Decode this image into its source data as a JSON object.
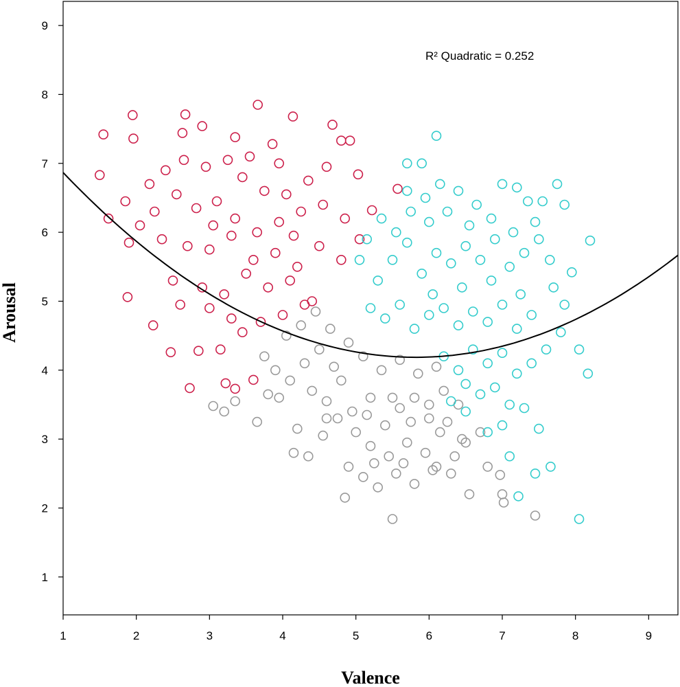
{
  "chart_data": {
    "type": "scatter",
    "xlabel": "Valence",
    "ylabel": "Arousal",
    "xlim": [
      1,
      9.4
    ],
    "ylim": [
      0.45,
      9.35
    ],
    "xticks": [
      1,
      2,
      3,
      4,
      5,
      6,
      7,
      8,
      9
    ],
    "yticks": [
      1,
      2,
      3,
      4,
      5,
      6,
      7,
      8,
      9
    ],
    "grid": false,
    "marker": "open-circle",
    "annotation": "R² Quadratic = 0.252",
    "fit": {
      "kind": "quadratic",
      "coefficients": {
        "a": 0.1154,
        "b": -1.343,
        "c": 8.094
      },
      "color": "#000000"
    },
    "series": [
      {
        "color": "#cc1f4a",
        "generated": true,
        "points": [
          [
            1.55,
            7.42
          ],
          [
            1.5,
            6.83
          ],
          [
            1.95,
            7.7
          ],
          [
            1.96,
            7.36
          ],
          [
            2.67,
            7.71
          ],
          [
            2.9,
            7.54
          ],
          [
            3.66,
            7.85
          ],
          [
            4.14,
            7.68
          ],
          [
            4.68,
            7.56
          ],
          [
            4.8,
            7.33
          ],
          [
            4.92,
            7.33
          ],
          [
            3.35,
            7.38
          ],
          [
            2.63,
            7.44
          ],
          [
            3.86,
            7.28
          ],
          [
            1.62,
            6.2
          ],
          [
            1.85,
            6.45
          ],
          [
            1.88,
            5.06
          ],
          [
            2.23,
            4.65
          ],
          [
            2.47,
            4.26
          ],
          [
            2.73,
            3.74
          ],
          [
            3.22,
            3.81
          ],
          [
            3.35,
            3.73
          ],
          [
            3.6,
            3.86
          ],
          [
            5.57,
            6.63
          ],
          [
            5.22,
            6.32
          ],
          [
            5.03,
            6.84
          ],
          [
            2.18,
            6.7
          ],
          [
            2.55,
            6.55
          ],
          [
            2.82,
            6.35
          ],
          [
            3.1,
            6.45
          ],
          [
            3.45,
            6.8
          ],
          [
            3.75,
            6.6
          ],
          [
            4.05,
            6.55
          ],
          [
            4.35,
            6.75
          ],
          [
            4.6,
            6.95
          ],
          [
            2.35,
            5.9
          ],
          [
            2.7,
            5.8
          ],
          [
            3.0,
            5.75
          ],
          [
            3.3,
            5.95
          ],
          [
            3.6,
            5.6
          ],
          [
            3.9,
            5.7
          ],
          [
            4.2,
            5.5
          ],
          [
            4.5,
            5.8
          ],
          [
            4.8,
            5.6
          ],
          [
            2.5,
            5.3
          ],
          [
            2.9,
            5.2
          ],
          [
            3.2,
            5.1
          ],
          [
            3.5,
            5.4
          ],
          [
            3.8,
            5.2
          ],
          [
            4.1,
            5.3
          ],
          [
            4.4,
            5.0
          ],
          [
            2.6,
            4.95
          ],
          [
            3.0,
            4.9
          ],
          [
            3.3,
            4.75
          ],
          [
            3.7,
            4.7
          ],
          [
            4.0,
            4.8
          ],
          [
            4.3,
            4.95
          ],
          [
            3.15,
            4.3
          ],
          [
            3.45,
            4.55
          ],
          [
            2.85,
            4.28
          ],
          [
            1.9,
            5.85
          ],
          [
            2.05,
            6.1
          ],
          [
            2.25,
            6.3
          ],
          [
            2.4,
            6.9
          ],
          [
            2.65,
            7.05
          ],
          [
            2.95,
            6.95
          ],
          [
            3.25,
            7.05
          ],
          [
            3.55,
            7.1
          ],
          [
            3.95,
            7.0
          ],
          [
            4.25,
            6.3
          ],
          [
            4.55,
            6.4
          ],
          [
            4.85,
            6.2
          ],
          [
            5.05,
            5.9
          ],
          [
            3.05,
            6.1
          ],
          [
            3.35,
            6.2
          ],
          [
            3.65,
            6.0
          ],
          [
            3.95,
            6.15
          ],
          [
            4.15,
            5.95
          ]
        ]
      },
      {
        "color": "#999999",
        "generated": true,
        "points": [
          [
            3.05,
            3.48
          ],
          [
            3.2,
            3.4
          ],
          [
            3.35,
            3.55
          ],
          [
            3.65,
            3.25
          ],
          [
            3.8,
            3.65
          ],
          [
            4.2,
            3.15
          ],
          [
            4.15,
            2.8
          ],
          [
            4.35,
            2.75
          ],
          [
            4.85,
            2.15
          ],
          [
            5.5,
            1.84
          ],
          [
            7.02,
            2.08
          ],
          [
            6.97,
            2.48
          ],
          [
            7.0,
            2.2
          ],
          [
            7.45,
            1.89
          ],
          [
            6.55,
            2.2
          ],
          [
            6.8,
            2.6
          ],
          [
            4.55,
            3.05
          ],
          [
            4.75,
            3.3
          ],
          [
            4.9,
            2.6
          ],
          [
            5.1,
            2.45
          ],
          [
            5.3,
            2.3
          ],
          [
            5.55,
            2.5
          ],
          [
            5.8,
            2.35
          ],
          [
            6.05,
            2.55
          ],
          [
            6.3,
            2.5
          ],
          [
            6.5,
            2.95
          ],
          [
            6.7,
            3.1
          ],
          [
            5.2,
            3.6
          ],
          [
            5.4,
            3.2
          ],
          [
            5.6,
            3.45
          ],
          [
            5.8,
            3.6
          ],
          [
            6.0,
            3.3
          ],
          [
            6.2,
            3.7
          ],
          [
            6.4,
            3.5
          ],
          [
            4.4,
            3.7
          ],
          [
            4.6,
            3.55
          ],
          [
            4.8,
            3.85
          ],
          [
            5.0,
            3.1
          ],
          [
            5.2,
            2.9
          ],
          [
            5.45,
            2.75
          ],
          [
            5.7,
            2.95
          ],
          [
            5.95,
            2.8
          ],
          [
            6.15,
            3.1
          ],
          [
            4.3,
            4.1
          ],
          [
            4.5,
            4.3
          ],
          [
            4.7,
            4.05
          ],
          [
            4.9,
            4.4
          ],
          [
            5.1,
            4.2
          ],
          [
            5.35,
            4.0
          ],
          [
            5.6,
            4.15
          ],
          [
            5.85,
            3.95
          ],
          [
            6.1,
            4.05
          ],
          [
            3.9,
            4.0
          ],
          [
            4.05,
            4.5
          ],
          [
            4.25,
            4.65
          ],
          [
            4.45,
            4.85
          ],
          [
            4.65,
            4.6
          ],
          [
            3.75,
            4.2
          ],
          [
            3.95,
            3.6
          ],
          [
            4.1,
            3.85
          ],
          [
            4.6,
            3.3
          ],
          [
            4.95,
            3.4
          ],
          [
            5.15,
            3.35
          ],
          [
            5.5,
            3.6
          ],
          [
            5.75,
            3.25
          ],
          [
            6.0,
            3.5
          ],
          [
            6.25,
            3.25
          ],
          [
            6.45,
            3.0
          ],
          [
            5.25,
            2.65
          ],
          [
            5.65,
            2.65
          ],
          [
            6.1,
            2.6
          ],
          [
            6.35,
            2.75
          ]
        ]
      },
      {
        "color": "#33cccc",
        "generated": true,
        "points": [
          [
            6.1,
            7.4
          ],
          [
            5.7,
            7.0
          ],
          [
            5.9,
            7.0
          ],
          [
            5.7,
            6.6
          ],
          [
            5.95,
            6.5
          ],
          [
            6.15,
            6.7
          ],
          [
            6.4,
            6.6
          ],
          [
            6.65,
            6.4
          ],
          [
            7.0,
            6.7
          ],
          [
            7.2,
            6.65
          ],
          [
            7.75,
            6.7
          ],
          [
            7.55,
            6.45
          ],
          [
            7.35,
            6.45
          ],
          [
            7.85,
            6.4
          ],
          [
            7.95,
            5.42
          ],
          [
            8.2,
            5.88
          ],
          [
            8.05,
            4.3
          ],
          [
            8.17,
            3.95
          ],
          [
            8.05,
            1.84
          ],
          [
            7.66,
            2.6
          ],
          [
            7.45,
            2.5
          ],
          [
            7.22,
            2.17
          ],
          [
            7.1,
            2.75
          ],
          [
            7.5,
            3.15
          ],
          [
            7.3,
            3.45
          ],
          [
            7.0,
            3.2
          ],
          [
            6.8,
            3.1
          ],
          [
            6.5,
            3.4
          ],
          [
            6.3,
            3.55
          ],
          [
            5.3,
            5.3
          ],
          [
            5.5,
            5.6
          ],
          [
            5.7,
            5.85
          ],
          [
            5.9,
            5.4
          ],
          [
            6.1,
            5.7
          ],
          [
            6.3,
            5.55
          ],
          [
            6.5,
            5.8
          ],
          [
            6.7,
            5.6
          ],
          [
            6.9,
            5.9
          ],
          [
            7.1,
            5.5
          ],
          [
            7.3,
            5.7
          ],
          [
            7.5,
            5.9
          ],
          [
            7.7,
            5.2
          ],
          [
            5.2,
            4.9
          ],
          [
            5.4,
            4.75
          ],
          [
            5.6,
            4.95
          ],
          [
            5.8,
            4.6
          ],
          [
            6.0,
            4.8
          ],
          [
            6.2,
            4.9
          ],
          [
            6.4,
            4.65
          ],
          [
            6.6,
            4.85
          ],
          [
            6.8,
            4.7
          ],
          [
            7.0,
            4.95
          ],
          [
            7.2,
            4.6
          ],
          [
            7.4,
            4.8
          ],
          [
            7.6,
            4.3
          ],
          [
            7.8,
            4.55
          ],
          [
            6.2,
            4.2
          ],
          [
            6.4,
            4.0
          ],
          [
            6.6,
            4.3
          ],
          [
            6.8,
            4.1
          ],
          [
            7.0,
            4.25
          ],
          [
            7.2,
            3.95
          ],
          [
            7.4,
            4.1
          ],
          [
            6.5,
            3.8
          ],
          [
            6.7,
            3.65
          ],
          [
            6.9,
            3.75
          ],
          [
            7.1,
            3.5
          ],
          [
            5.05,
            5.6
          ],
          [
            5.15,
            5.9
          ],
          [
            5.35,
            6.2
          ],
          [
            5.55,
            6.0
          ],
          [
            5.75,
            6.3
          ],
          [
            6.0,
            6.15
          ],
          [
            6.25,
            6.3
          ],
          [
            6.55,
            6.1
          ],
          [
            6.85,
            6.2
          ],
          [
            7.15,
            6.0
          ],
          [
            7.45,
            6.15
          ],
          [
            7.65,
            5.6
          ],
          [
            7.85,
            4.95
          ],
          [
            6.05,
            5.1
          ],
          [
            6.45,
            5.2
          ],
          [
            6.85,
            5.3
          ],
          [
            7.25,
            5.1
          ]
        ]
      }
    ]
  }
}
